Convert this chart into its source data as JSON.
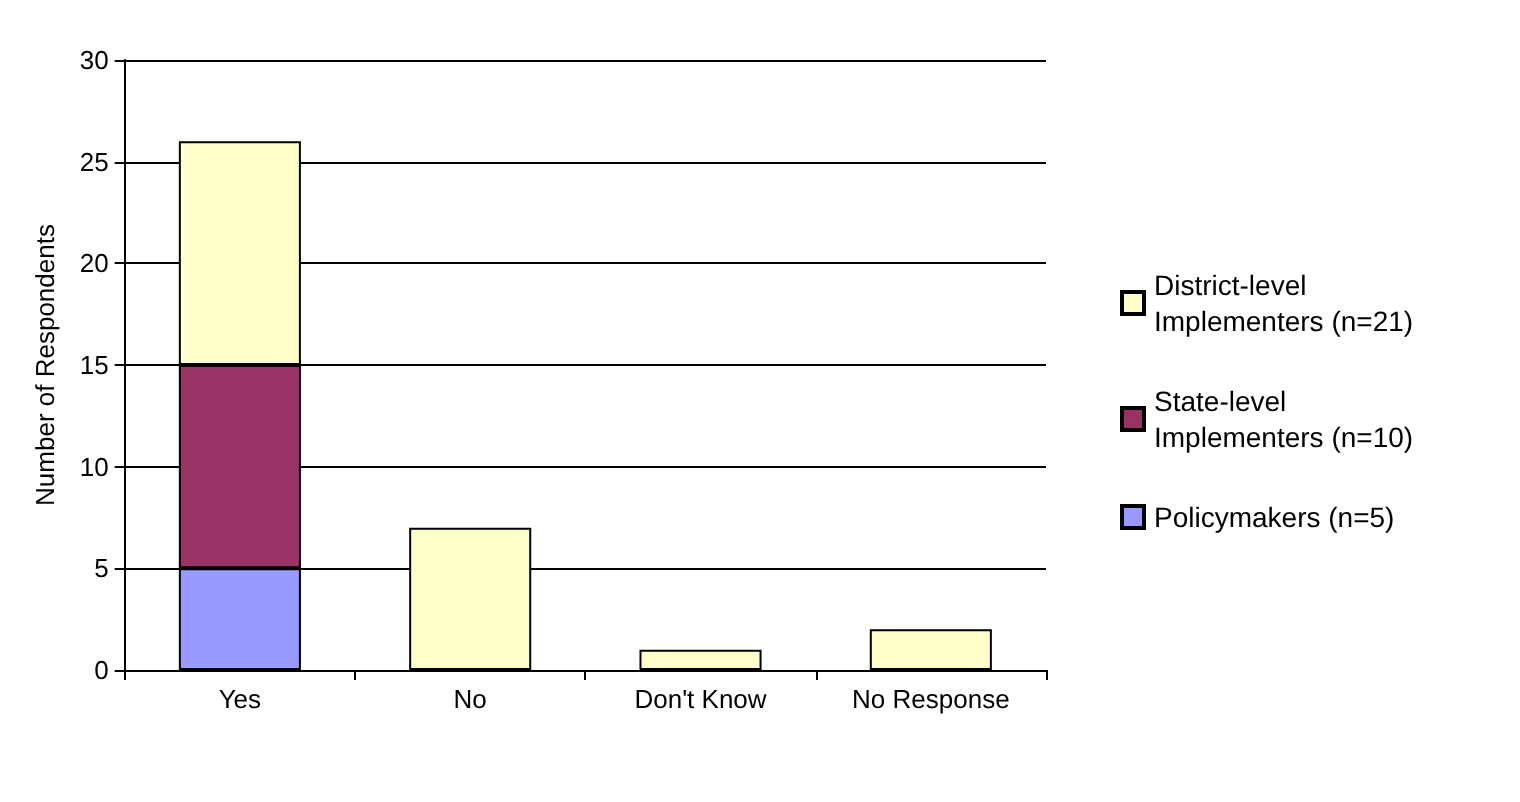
{
  "chart_data": {
    "type": "bar",
    "stacked": true,
    "ylabel": "Number of Respondents",
    "categories": [
      "Yes",
      "No",
      "Don't Know",
      "No Response"
    ],
    "series": [
      {
        "name": "Policymakers (n=5)",
        "color": "#9999ff",
        "values": [
          5,
          0,
          0,
          0
        ]
      },
      {
        "name": "State-level Implementers (n=10)",
        "color": "#993366",
        "values": [
          10,
          0,
          0,
          0
        ]
      },
      {
        "name": "District-level Implementers (n=21)",
        "color": "#ffffcc",
        "values": [
          11,
          7,
          1,
          2
        ]
      }
    ],
    "ylim": [
      0,
      30
    ],
    "yticks": [
      0,
      5,
      10,
      15,
      20,
      25,
      30
    ],
    "grid": "y",
    "legend": "right"
  }
}
